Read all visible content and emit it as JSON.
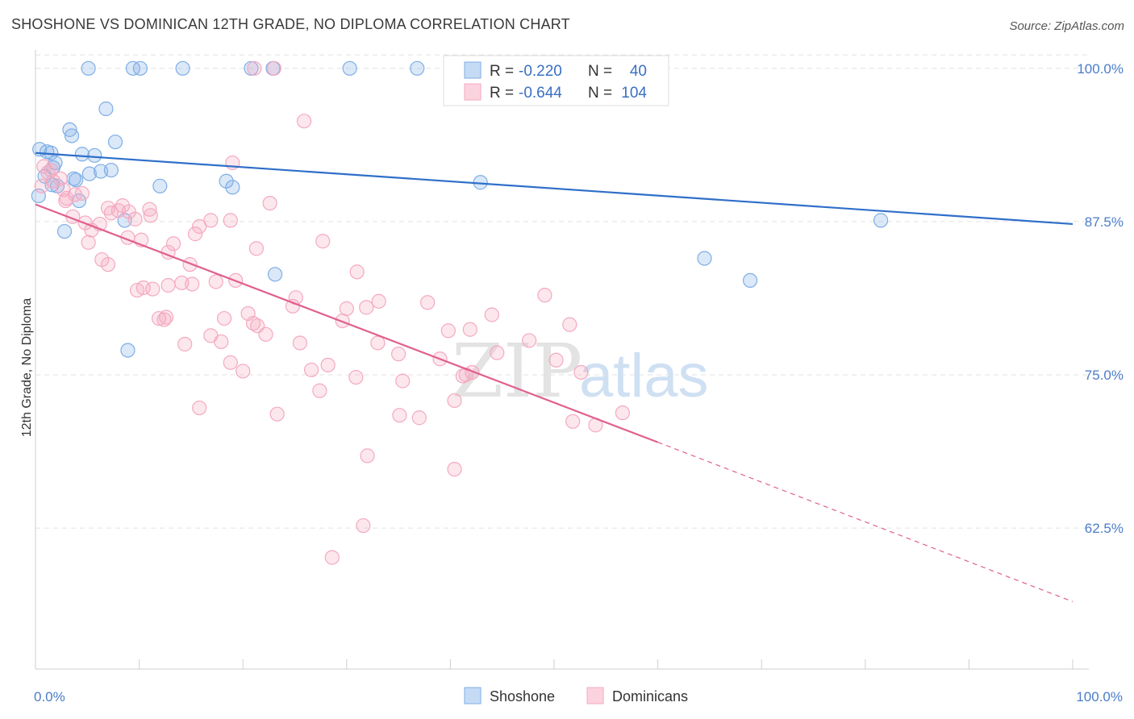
{
  "title": "SHOSHONE VS DOMINICAN 12TH GRADE, NO DIPLOMA CORRELATION CHART",
  "source": "Source: ZipAtlas.com",
  "watermark": {
    "zip": "ZIP",
    "atlas": "atlas"
  },
  "chart_data": {
    "type": "scatter",
    "ylabel": "12th Grade, No Diploma",
    "xlabel": "",
    "xlim": [
      0,
      100
    ],
    "ylim": [
      51,
      101.5
    ],
    "x_ticks": [
      {
        "value": 0,
        "label": "0.0%"
      },
      {
        "value": 100,
        "label": "100.0%"
      }
    ],
    "y_ticks": [
      {
        "value": 100,
        "label": "100.0%"
      },
      {
        "value": 87.5,
        "label": "87.5%"
      },
      {
        "value": 75,
        "label": "75.0%"
      },
      {
        "value": 62.5,
        "label": "62.5%"
      }
    ],
    "grid": true,
    "legend_placement": "top",
    "series": [
      {
        "name": "Shoshone",
        "color": "#7eaee6",
        "line_color": "#2f6fc9",
        "r": "-0.220",
        "n": "40",
        "trend": {
          "x0": 0,
          "y0": 93.1,
          "x1": 100,
          "y1": 87.3
        },
        "points": [
          [
            5.1,
            100
          ],
          [
            9.4,
            100
          ],
          [
            10.1,
            100
          ],
          [
            14.2,
            100
          ],
          [
            20.8,
            100
          ],
          [
            22.9,
            100
          ],
          [
            30.3,
            100
          ],
          [
            36.8,
            100
          ],
          [
            6.8,
            96.7
          ],
          [
            3.3,
            95
          ],
          [
            3.5,
            94.5
          ],
          [
            7.7,
            94
          ],
          [
            0.4,
            93.4
          ],
          [
            1.1,
            93.2
          ],
          [
            1.5,
            93.1
          ],
          [
            4.5,
            93
          ],
          [
            5.7,
            92.9
          ],
          [
            1.9,
            92.3
          ],
          [
            1.7,
            91.9
          ],
          [
            7.3,
            91.7
          ],
          [
            6.3,
            91.6
          ],
          [
            5.2,
            91.4
          ],
          [
            0.9,
            91.2
          ],
          [
            3.7,
            91
          ],
          [
            3.9,
            90.9
          ],
          [
            18.4,
            90.8
          ],
          [
            42.9,
            90.7
          ],
          [
            1.6,
            90.5
          ],
          [
            2.1,
            90.4
          ],
          [
            12.0,
            90.4
          ],
          [
            19.0,
            90.3
          ],
          [
            0.3,
            89.6
          ],
          [
            4.2,
            89.2
          ],
          [
            8.6,
            87.6
          ],
          [
            81.5,
            87.6
          ],
          [
            2.8,
            86.7
          ],
          [
            64.5,
            84.5
          ],
          [
            23.1,
            83.2
          ],
          [
            68.9,
            82.7
          ],
          [
            8.9,
            77
          ]
        ]
      },
      {
        "name": "Dominicans",
        "color": "#f4a9c0",
        "line_color": "#e0608f",
        "r": "-0.644",
        "n": "104",
        "trend": {
          "x0": 0,
          "y0": 88.9,
          "x1": 60,
          "y1": 69.5,
          "dash_x1": 100,
          "dash_y1": 56.5
        },
        "points": [
          [
            21.1,
            100
          ],
          [
            23.0,
            100
          ],
          [
            25.9,
            95.7
          ],
          [
            19.0,
            92.3
          ],
          [
            0.8,
            92
          ],
          [
            1.5,
            91.7
          ],
          [
            1.2,
            91.5
          ],
          [
            2.4,
            91
          ],
          [
            1.7,
            90.8
          ],
          [
            0.6,
            90.4
          ],
          [
            2.7,
            90.1
          ],
          [
            4.5,
            89.8
          ],
          [
            3.8,
            89.7
          ],
          [
            3.0,
            89.4
          ],
          [
            2.9,
            89.2
          ],
          [
            22.6,
            89
          ],
          [
            8.4,
            88.8
          ],
          [
            7.0,
            88.6
          ],
          [
            11.0,
            88.5
          ],
          [
            8.0,
            88.4
          ],
          [
            9.0,
            88.3
          ],
          [
            7.3,
            88.2
          ],
          [
            11.1,
            88
          ],
          [
            3.6,
            87.9
          ],
          [
            9.6,
            87.7
          ],
          [
            16.9,
            87.6
          ],
          [
            18.8,
            87.6
          ],
          [
            4.8,
            87.4
          ],
          [
            6.2,
            87.3
          ],
          [
            15.8,
            87.1
          ],
          [
            5.4,
            86.8
          ],
          [
            15.4,
            86.5
          ],
          [
            8.9,
            86.2
          ],
          [
            10.2,
            86
          ],
          [
            27.7,
            85.9
          ],
          [
            5.1,
            85.8
          ],
          [
            13.3,
            85.7
          ],
          [
            21.3,
            85.3
          ],
          [
            12.8,
            85
          ],
          [
            6.4,
            84.4
          ],
          [
            7.0,
            84
          ],
          [
            14.9,
            84
          ],
          [
            31.0,
            83.4
          ],
          [
            19.3,
            82.7
          ],
          [
            17.4,
            82.6
          ],
          [
            14.1,
            82.5
          ],
          [
            15.1,
            82.4
          ],
          [
            12.8,
            82.3
          ],
          [
            10.4,
            82.1
          ],
          [
            11.3,
            82
          ],
          [
            9.8,
            81.9
          ],
          [
            49.1,
            81.5
          ],
          [
            25.1,
            81.3
          ],
          [
            33.1,
            81
          ],
          [
            37.8,
            80.9
          ],
          [
            31.9,
            80.5
          ],
          [
            30.0,
            80.4
          ],
          [
            24.8,
            80.6
          ],
          [
            20.5,
            80
          ],
          [
            44.0,
            79.9
          ],
          [
            12.6,
            79.7
          ],
          [
            11.9,
            79.6
          ],
          [
            18.2,
            79.6
          ],
          [
            12.4,
            79.5
          ],
          [
            29.6,
            79.4
          ],
          [
            21.0,
            79.2
          ],
          [
            51.5,
            79.1
          ],
          [
            21.4,
            79
          ],
          [
            39.8,
            78.6
          ],
          [
            22.2,
            78.3
          ],
          [
            16.9,
            78.2
          ],
          [
            17.9,
            77.7
          ],
          [
            14.4,
            77.5
          ],
          [
            25.5,
            77.6
          ],
          [
            33.0,
            77.6
          ],
          [
            44.5,
            76.8
          ],
          [
            35.0,
            76.7
          ],
          [
            39.0,
            76.3
          ],
          [
            50.2,
            76.2
          ],
          [
            18.8,
            76
          ],
          [
            28.2,
            75.8
          ],
          [
            20.0,
            75.3
          ],
          [
            26.6,
            75.4
          ],
          [
            42.1,
            75.2
          ],
          [
            52.6,
            75.2
          ],
          [
            41.2,
            74.9
          ],
          [
            41.5,
            75
          ],
          [
            30.9,
            74.8
          ],
          [
            35.4,
            74.5
          ],
          [
            27.4,
            73.7
          ],
          [
            40.4,
            72.9
          ],
          [
            15.8,
            72.3
          ],
          [
            23.3,
            71.8
          ],
          [
            35.1,
            71.7
          ],
          [
            56.6,
            71.9
          ],
          [
            51.8,
            71.2
          ],
          [
            32.0,
            68.4
          ],
          [
            40.4,
            67.3
          ],
          [
            31.6,
            62.7
          ],
          [
            28.6,
            60.1
          ],
          [
            54.0,
            70.9
          ],
          [
            47.6,
            77.8
          ],
          [
            41.9,
            78.7
          ],
          [
            37.0,
            71.5
          ]
        ]
      }
    ]
  },
  "legend": {
    "shoshone": {
      "r_label": "R = ",
      "r_value": "-0.220",
      "n_label": "N = ",
      "n_value": "40"
    },
    "dominicans": {
      "r_label": "R = ",
      "r_value": "-0.644",
      "n_label": "N = ",
      "n_value": "104"
    }
  },
  "bottom_legend": [
    "Shoshone",
    "Dominicans"
  ]
}
